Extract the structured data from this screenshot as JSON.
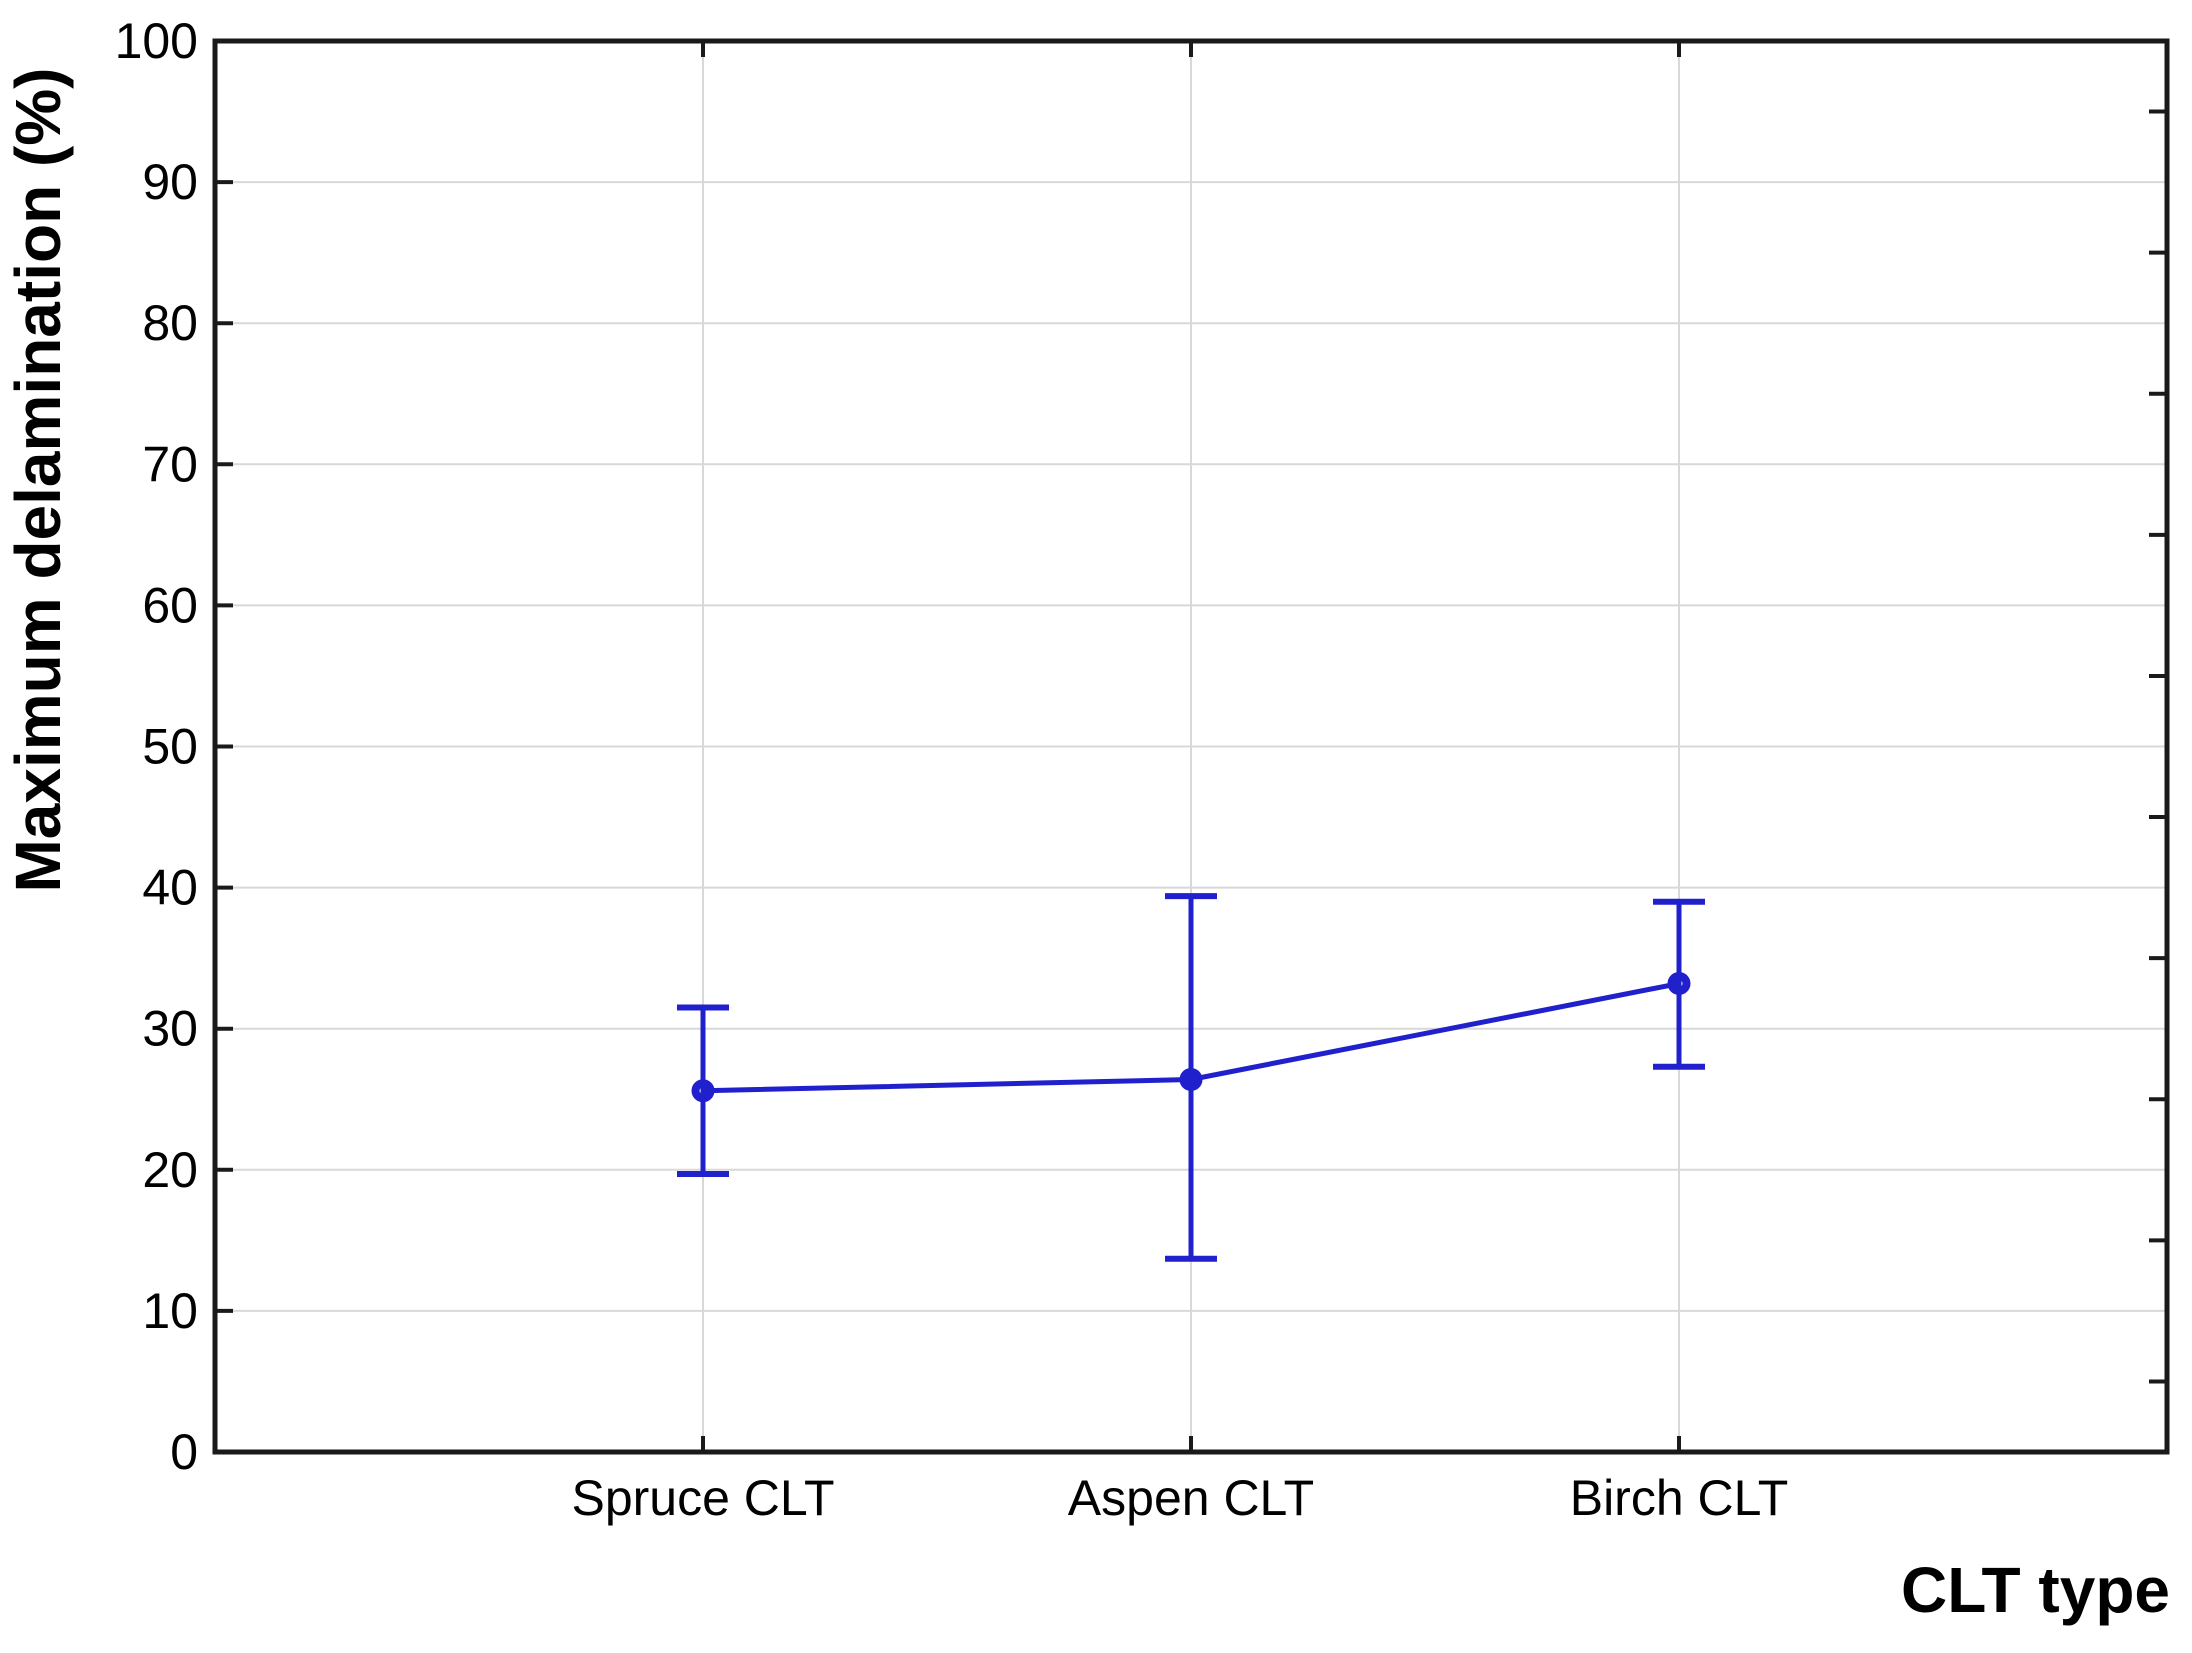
{
  "chart_data": {
    "type": "line",
    "title": "",
    "xlabel": "CLT type",
    "ylabel": "Maximum delamination (%)",
    "categories": [
      "Spruce CLT",
      "Aspen CLT",
      "Birch CLT"
    ],
    "series": [
      {
        "name": "Maximum delamination",
        "values": [
          25.6,
          26.4,
          33.2
        ],
        "error_upper": [
          31.5,
          39.4,
          39.0
        ],
        "error_lower": [
          19.7,
          13.7,
          27.3
        ]
      }
    ],
    "ylim": [
      0,
      100
    ],
    "yticks": [
      0,
      10,
      20,
      30,
      40,
      50,
      60,
      70,
      80,
      90,
      100
    ],
    "right_minor_ticks": [
      5,
      15,
      25,
      35,
      45,
      55,
      65,
      75,
      85,
      95
    ],
    "grid": true,
    "legend": {
      "visible": false
    },
    "marker_style": "open-circle",
    "colors": {
      "series": "#2020CC",
      "grid": "#D8D8D8",
      "axis": "#1A1A1A",
      "text": "#000000",
      "background": "#FFFFFF"
    }
  }
}
